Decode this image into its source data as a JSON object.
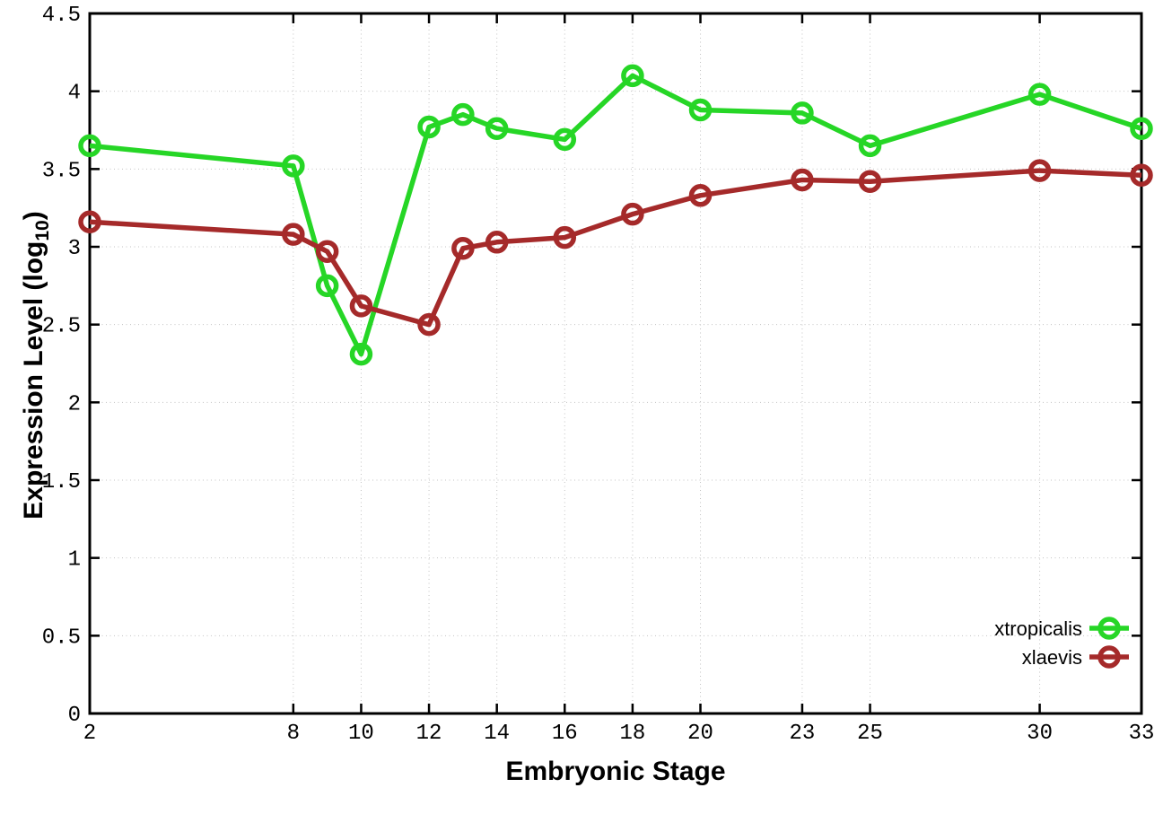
{
  "chart_data": {
    "type": "line",
    "title": "",
    "xlabel": "Embryonic Stage",
    "ylabel": "Expression Level (log10)",
    "ylabel_parts": {
      "prefix": "Expression Level (log",
      "sub": "10",
      "suffix": ")"
    },
    "x": [
      2,
      8,
      9,
      10,
      12,
      13,
      14,
      16,
      18,
      20,
      23,
      25,
      30,
      33
    ],
    "series": [
      {
        "name": "xtropicalis",
        "color": "#26d626",
        "values": [
          3.65,
          3.52,
          2.75,
          2.31,
          3.77,
          3.85,
          3.76,
          3.69,
          4.1,
          3.88,
          3.86,
          3.65,
          3.98,
          3.76
        ]
      },
      {
        "name": "xlaevis",
        "color": "#a52a2a",
        "values": [
          3.16,
          3.08,
          2.97,
          2.62,
          2.5,
          2.99,
          3.03,
          3.06,
          3.21,
          3.33,
          3.43,
          3.42,
          3.49,
          3.46
        ]
      }
    ],
    "xlim": [
      2,
      33
    ],
    "ylim": [
      0,
      4.5
    ],
    "xtick_values": [
      2,
      8,
      10,
      12,
      14,
      16,
      18,
      20,
      23,
      25,
      30,
      33
    ],
    "xtick_labels": [
      "2",
      "8",
      "10",
      "12",
      "14",
      "16",
      "18",
      "20",
      "23",
      "25",
      "30",
      "33"
    ],
    "ytick_values": [
      0,
      0.5,
      1,
      1.5,
      2,
      2.5,
      3,
      3.5,
      4,
      4.5
    ],
    "ytick_labels": [
      "0",
      "0.5",
      "1",
      "1.5",
      "2",
      "2.5",
      "3",
      "3.5",
      "4",
      "4.5"
    ],
    "grid": "dotted",
    "marker": "open-circle",
    "legend": {
      "position": "bottom-right",
      "entries": [
        "xtropicalis",
        "xlaevis"
      ]
    },
    "colors": {
      "axis": "#000000",
      "grid": "#c3c3c3",
      "background": "#ffffff"
    }
  }
}
